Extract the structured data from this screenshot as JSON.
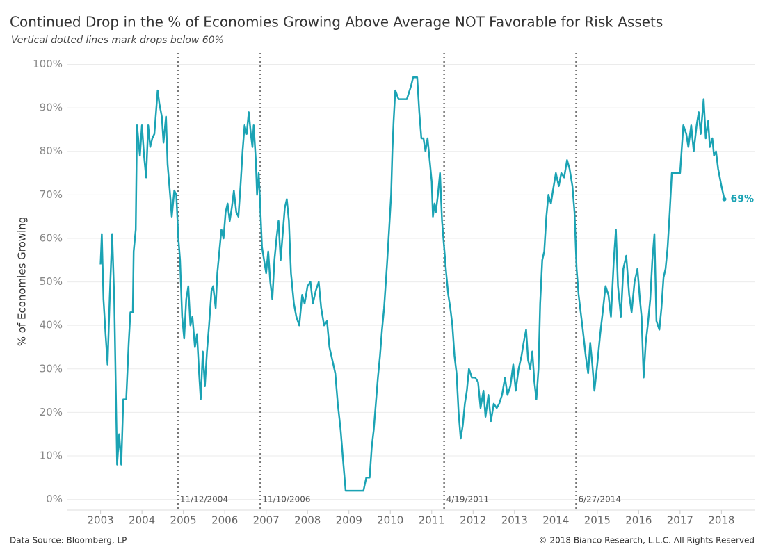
{
  "chart_data": {
    "type": "line",
    "title": "Continued Drop in the % of Economies Growing Above Average NOT Favorable for Risk Assets",
    "subtitle": "Vertical dotted lines mark drops below 60%",
    "y_label": "% of Economies Growing",
    "source": "Data Source: Bloomberg, LP",
    "copyright": "© 2018 Bianco Research, L.L.C. All Rights Reserved",
    "end_label": "69%",
    "grid": true,
    "xlim": [
      2002.2,
      2018.8
    ],
    "ylim": [
      -1.5,
      102
    ],
    "xticks": [
      2003,
      2004,
      2005,
      2006,
      2007,
      2008,
      2009,
      2010,
      2011,
      2012,
      2013,
      2014,
      2015,
      2016,
      2017,
      2018
    ],
    "yticks": [
      {
        "value": 0,
        "label": "0%"
      },
      {
        "value": 10,
        "label": "10%"
      },
      {
        "value": 20,
        "label": "20%"
      },
      {
        "value": 30,
        "label": "30%"
      },
      {
        "value": 40,
        "label": "40%"
      },
      {
        "value": 50,
        "label": "50%"
      },
      {
        "value": 60,
        "label": "60%"
      },
      {
        "value": 70,
        "label": "70%"
      },
      {
        "value": 80,
        "label": "80%"
      },
      {
        "value": 90,
        "label": "90%"
      },
      {
        "value": 100,
        "label": "100%"
      }
    ],
    "vlines": [
      {
        "x": 2004.87,
        "label": "11/12/2004"
      },
      {
        "x": 2006.86,
        "label": "11/10/2006"
      },
      {
        "x": 2011.3,
        "label": "4/19/2011"
      },
      {
        "x": 2014.49,
        "label": "6/27/2014"
      }
    ],
    "x": [
      2003.0,
      2003.03,
      2003.07,
      2003.12,
      2003.17,
      2003.22,
      2003.28,
      2003.33,
      2003.4,
      2003.45,
      2003.5,
      2003.55,
      2003.62,
      2003.68,
      2003.72,
      2003.78,
      2003.8,
      2003.85,
      2003.88,
      2003.95,
      2004.0,
      2004.05,
      2004.1,
      2004.15,
      2004.2,
      2004.25,
      2004.3,
      2004.38,
      2004.42,
      2004.48,
      2004.52,
      2004.58,
      2004.62,
      2004.68,
      2004.72,
      2004.78,
      2004.83,
      2004.88,
      2004.92,
      2004.97,
      2005.02,
      2005.07,
      2005.12,
      2005.17,
      2005.22,
      2005.28,
      2005.33,
      2005.38,
      2005.42,
      2005.47,
      2005.52,
      2005.57,
      2005.62,
      2005.68,
      2005.72,
      2005.78,
      2005.82,
      2005.87,
      2005.92,
      2005.97,
      2006.02,
      2006.07,
      2006.12,
      2006.17,
      2006.22,
      2006.28,
      2006.33,
      2006.38,
      2006.43,
      2006.48,
      2006.53,
      2006.58,
      2006.63,
      2006.67,
      2006.7,
      2006.75,
      2006.78,
      2006.82,
      2006.85,
      2006.9,
      2006.95,
      2007.0,
      2007.05,
      2007.1,
      2007.15,
      2007.2,
      2007.25,
      2007.3,
      2007.35,
      2007.4,
      2007.45,
      2007.5,
      2007.55,
      2007.6,
      2007.67,
      2007.73,
      2007.8,
      2007.87,
      2007.93,
      2008.0,
      2008.07,
      2008.13,
      2008.2,
      2008.27,
      2008.33,
      2008.4,
      2008.47,
      2008.53,
      2008.6,
      2008.67,
      2008.73,
      2008.8,
      2008.85,
      2008.92,
      2009.05,
      2009.2,
      2009.35,
      2009.42,
      2009.5,
      2009.55,
      2009.6,
      2009.65,
      2009.7,
      2009.75,
      2009.8,
      2009.85,
      2009.92,
      2009.97,
      2010.02,
      2010.05,
      2010.08,
      2010.12,
      2010.2,
      2010.3,
      2010.4,
      2010.5,
      2010.55,
      2010.65,
      2010.7,
      2010.75,
      2010.8,
      2010.85,
      2010.9,
      2010.95,
      2011.0,
      2011.03,
      2011.07,
      2011.1,
      2011.15,
      2011.2,
      2011.25,
      2011.3,
      2011.35,
      2011.4,
      2011.45,
      2011.5,
      2011.55,
      2011.6,
      2011.65,
      2011.7,
      2011.75,
      2011.8,
      2011.85,
      2011.9,
      2011.97,
      2012.05,
      2012.12,
      2012.18,
      2012.25,
      2012.3,
      2012.37,
      2012.43,
      2012.5,
      2012.57,
      2012.63,
      2012.7,
      2012.77,
      2012.83,
      2012.9,
      2012.97,
      2013.03,
      2013.1,
      2013.17,
      2013.22,
      2013.28,
      2013.33,
      2013.38,
      2013.43,
      2013.48,
      2013.53,
      2013.58,
      2013.62,
      2013.67,
      2013.72,
      2013.77,
      2013.82,
      2013.88,
      2013.93,
      2014.0,
      2014.07,
      2014.13,
      2014.2,
      2014.27,
      2014.33,
      2014.4,
      2014.45,
      2014.5,
      2014.55,
      2014.6,
      2014.65,
      2014.72,
      2014.78,
      2014.83,
      2014.88,
      2014.93,
      2015.0,
      2015.07,
      2015.13,
      2015.2,
      2015.27,
      2015.33,
      2015.4,
      2015.45,
      2015.5,
      2015.57,
      2015.63,
      2015.7,
      2015.77,
      2015.83,
      2015.9,
      2015.97,
      2016.03,
      2016.07,
      2016.12,
      2016.17,
      2016.22,
      2016.28,
      2016.33,
      2016.38,
      2016.43,
      2016.5,
      2016.55,
      2016.6,
      2016.65,
      2016.7,
      2016.75,
      2016.8,
      2016.9,
      2017.0,
      2017.08,
      2017.15,
      2017.2,
      2017.27,
      2017.33,
      2017.4,
      2017.45,
      2017.5,
      2017.57,
      2017.62,
      2017.68,
      2017.72,
      2017.78,
      2017.82,
      2017.87,
      2017.92,
      2018.0,
      2018.07
    ],
    "series": [
      {
        "name": "% of Economies Growing",
        "color": "#1ba3b4",
        "values": [
          54,
          61,
          46,
          38,
          31,
          46,
          61,
          46,
          8,
          15,
          8,
          23,
          23,
          36,
          43,
          43,
          57,
          62,
          86,
          79,
          86,
          79,
          74,
          86,
          81,
          83,
          84,
          94,
          91,
          88,
          82,
          88,
          77,
          70,
          65,
          71,
          70,
          60,
          55,
          42,
          37,
          46,
          49,
          40,
          42,
          35,
          38,
          29,
          23,
          34,
          26,
          34,
          40,
          48,
          49,
          44,
          52,
          57,
          62,
          60,
          66,
          68,
          64,
          67,
          71,
          66,
          65,
          72,
          80,
          86,
          84,
          89,
          84,
          81,
          86,
          78,
          70,
          75,
          69,
          58,
          55,
          52,
          57,
          50,
          46,
          55,
          60,
          64,
          55,
          61,
          67,
          69,
          64,
          52,
          45,
          42,
          40,
          47,
          45,
          49,
          50,
          45,
          48,
          50,
          44,
          40,
          41,
          35,
          32,
          29,
          22,
          16,
          10,
          2,
          2,
          2,
          2,
          5,
          5,
          12,
          16,
          22,
          28,
          33,
          39,
          44,
          54,
          62,
          70,
          80,
          87,
          94,
          92,
          92,
          92,
          95,
          97,
          97,
          89,
          83,
          83,
          80,
          83,
          78,
          73,
          65,
          68,
          66,
          70,
          75,
          64,
          58,
          52,
          47,
          44,
          40,
          33,
          29,
          20,
          14,
          17,
          22,
          25,
          30,
          28,
          28,
          27,
          21,
          25,
          19,
          24,
          18,
          22,
          21,
          22,
          24,
          28,
          24,
          26,
          31,
          25,
          30,
          33,
          36,
          39,
          32,
          30,
          34,
          27,
          23,
          30,
          45,
          55,
          57,
          65,
          70,
          68,
          71,
          75,
          72,
          75,
          74,
          78,
          76,
          72,
          66,
          53,
          47,
          43,
          39,
          33,
          29,
          36,
          31,
          25,
          31,
          38,
          43,
          49,
          47,
          42,
          55,
          62,
          49,
          42,
          53,
          56,
          47,
          43,
          50,
          53,
          46,
          42,
          28,
          36,
          40,
          46,
          55,
          61,
          41,
          39,
          44,
          51,
          53,
          58,
          66,
          75,
          75,
          75,
          86,
          84,
          81,
          86,
          80,
          86,
          89,
          84,
          92,
          83,
          87,
          81,
          83,
          79,
          80,
          76,
          72,
          69
        ]
      }
    ]
  }
}
